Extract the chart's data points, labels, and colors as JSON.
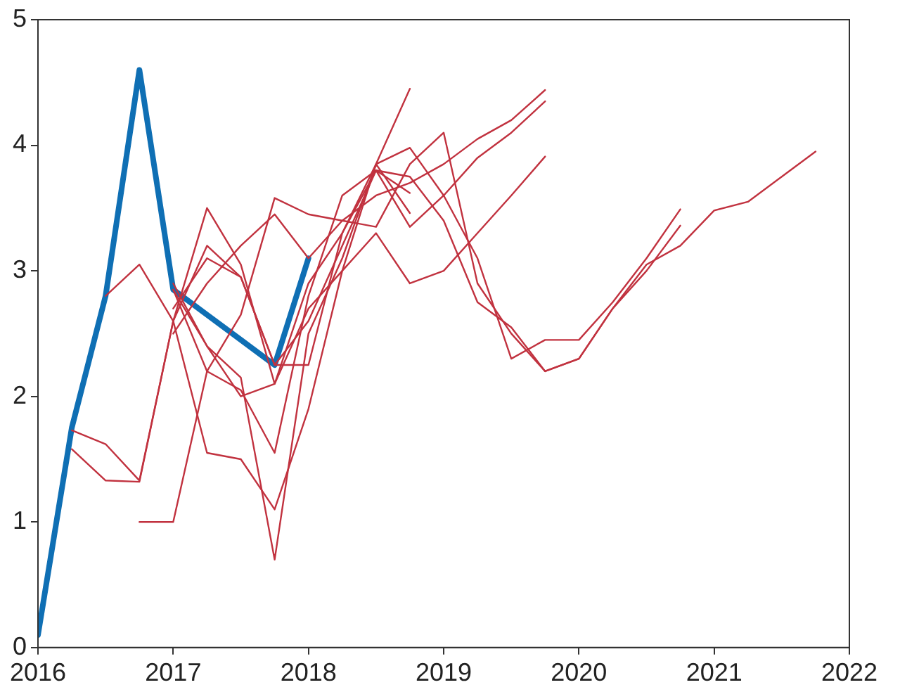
{
  "chart_data": {
    "type": "line",
    "x": [
      2016,
      2016.25,
      2016.5,
      2016.75,
      2017,
      2017.25,
      2017.5,
      2017.75,
      2018,
      2018.25,
      2018.5,
      2018.75,
      2019,
      2019.25,
      2019.5,
      2019.75,
      2020,
      2020.25,
      2020.5,
      2020.75,
      2021,
      2021.25,
      2021.5,
      2021.75
    ],
    "xlim": [
      2016,
      2022
    ],
    "xticks": [
      2016,
      2017,
      2018,
      2019,
      2020,
      2021,
      2022
    ],
    "ylim": [
      0,
      5
    ],
    "yticks": [
      0,
      1,
      2,
      3,
      4,
      5
    ],
    "grid": false,
    "legend": false,
    "marker": "none",
    "line_style": "solid",
    "series": [
      {
        "color": "#c1323f",
        "values": [
          null,
          1.73,
          1.62,
          1.33,
          2.6,
          3.5,
          3.05,
          2.1,
          2.9,
          3.3,
          3.85,
          4.45,
          null,
          null,
          null,
          null,
          null,
          null,
          null,
          null,
          null,
          null,
          null,
          null
        ]
      },
      {
        "color": "#c1323f",
        "values": [
          null,
          1.58,
          1.33,
          1.32,
          2.6,
          3.2,
          2.95,
          2.25,
          2.25,
          3.3,
          3.8,
          3.62,
          null,
          null,
          null,
          null,
          null,
          null,
          null,
          null,
          null,
          null,
          null,
          null
        ]
      },
      {
        "color": "#c1323f",
        "values": [
          null,
          null,
          2.8,
          3.05,
          2.6,
          1.55,
          1.5,
          1.1,
          1.9,
          3.0,
          3.85,
          3.46,
          null,
          null,
          null,
          null,
          null,
          null,
          null,
          null,
          null,
          null,
          null,
          null
        ]
      },
      {
        "color": "#c1323f",
        "values": [
          null,
          null,
          null,
          1.0,
          1.0,
          2.2,
          2.65,
          3.58,
          3.45,
          3.4,
          3.35,
          3.85,
          4.1,
          2.9,
          2.5,
          2.2,
          2.3,
          2.7,
          3.05,
          3.2,
          3.48,
          3.55,
          3.75,
          3.95
        ]
      },
      {
        "color": "#c1323f",
        "values": [
          null,
          null,
          null,
          null,
          2.85,
          2.4,
          2.15,
          0.7,
          2.5,
          3.1,
          3.85,
          3.98,
          3.6,
          3.1,
          2.3,
          2.45,
          2.45,
          2.75,
          3.1,
          3.49,
          null,
          null,
          null,
          null
        ]
      },
      {
        "color": "#c1323f",
        "values": [
          null,
          null,
          null,
          null,
          2.85,
          2.2,
          2.05,
          1.55,
          2.8,
          3.6,
          3.8,
          3.75,
          3.4,
          2.75,
          2.55,
          2.2,
          2.3,
          2.7,
          3.0,
          3.36,
          null,
          null,
          null,
          null
        ]
      },
      {
        "color": "#c1323f",
        "values": [
          null,
          null,
          null,
          null,
          2.5,
          2.9,
          3.2,
          3.45,
          3.1,
          3.4,
          3.6,
          3.7,
          3.85,
          4.05,
          4.2,
          4.44,
          null,
          null,
          null,
          null,
          null,
          null,
          null,
          null
        ]
      },
      {
        "color": "#c1323f",
        "values": [
          null,
          null,
          null,
          null,
          2.7,
          3.1,
          2.95,
          2.25,
          2.6,
          3.2,
          3.8,
          3.35,
          3.6,
          3.9,
          4.1,
          4.35,
          null,
          null,
          null,
          null,
          null,
          null,
          null,
          null
        ]
      },
      {
        "color": "#c1323f",
        "values": [
          null,
          null,
          null,
          null,
          2.9,
          2.4,
          2.0,
          2.1,
          2.7,
          3.0,
          3.3,
          2.9,
          3.0,
          3.3,
          3.6,
          3.91,
          null,
          null,
          null,
          null,
          null,
          null,
          null,
          null
        ]
      },
      {
        "color": "#0f6fb4",
        "values": [
          0.1,
          1.75,
          2.8,
          4.6,
          2.85,
          2.65,
          2.45,
          2.25,
          3.1,
          null,
          null,
          null,
          null,
          null,
          null,
          null,
          null,
          null,
          null,
          null,
          null,
          null,
          null,
          null
        ]
      }
    ]
  }
}
